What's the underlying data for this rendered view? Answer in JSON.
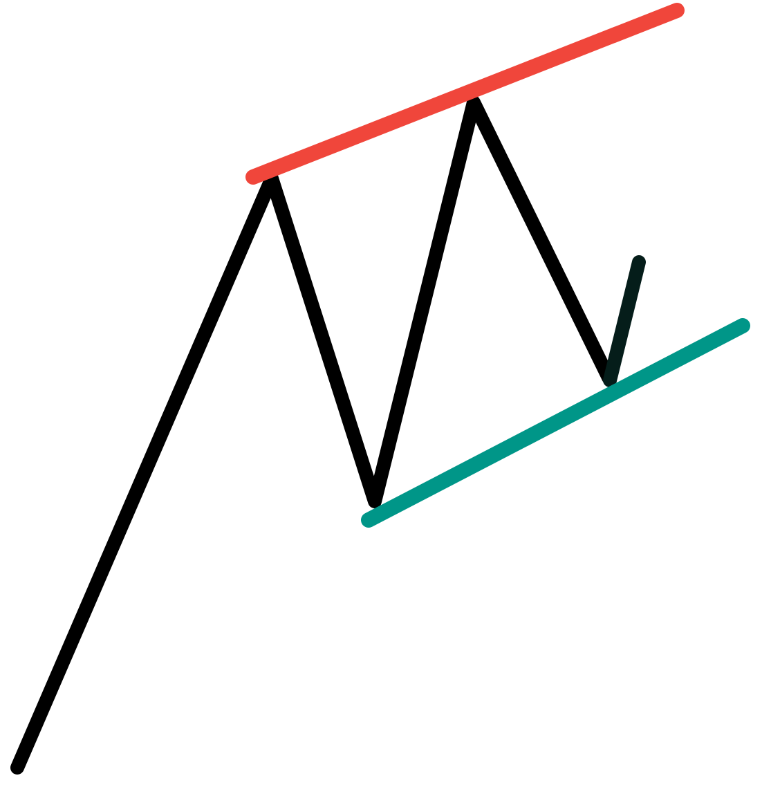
{
  "diagram": {
    "type": "rising-wedge-pattern",
    "colors": {
      "background": "#ffffff",
      "price_path": "#000000",
      "breakdown_leg": "#051d1a",
      "resistance_line": "#f0463b",
      "support_line": "#009688"
    },
    "elements": [
      {
        "name": "price-path",
        "kind": "zigzag"
      },
      {
        "name": "breakdown-leg",
        "kind": "segment"
      },
      {
        "name": "resistance-trendline",
        "kind": "trendline"
      },
      {
        "name": "support-trendline",
        "kind": "trendline"
      }
    ]
  }
}
